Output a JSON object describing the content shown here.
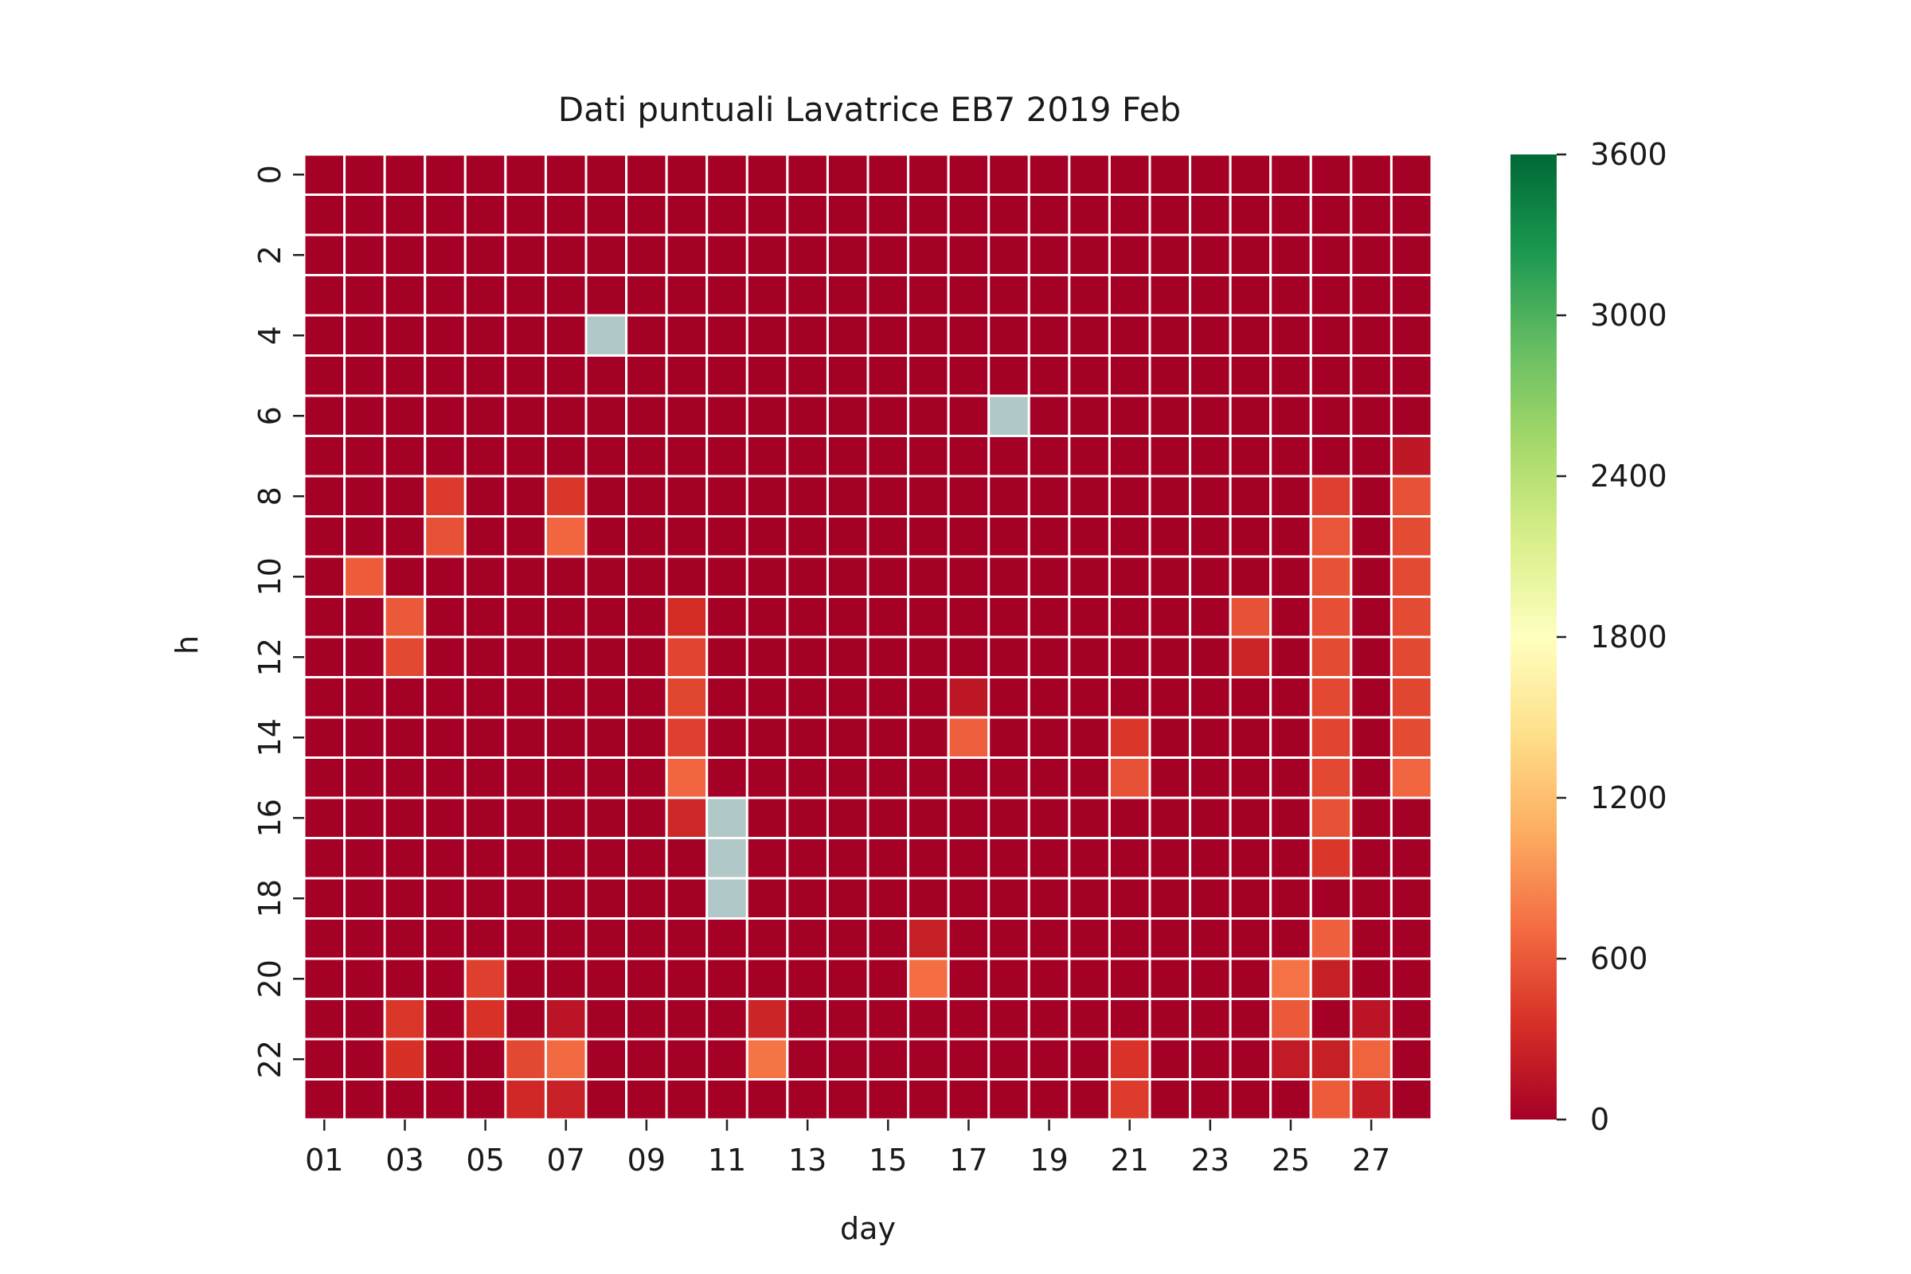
{
  "chart_data": {
    "type": "heatmap",
    "title": "Dati puntuali Lavatrice EB7 2019 Feb",
    "xlabel": "day",
    "ylabel": "h",
    "days": [
      "01",
      "02",
      "03",
      "04",
      "05",
      "06",
      "07",
      "08",
      "09",
      "10",
      "11",
      "12",
      "13",
      "14",
      "15",
      "16",
      "17",
      "18",
      "19",
      "20",
      "21",
      "22",
      "23",
      "24",
      "25",
      "26",
      "27",
      "28"
    ],
    "hours": [
      0,
      1,
      2,
      3,
      4,
      5,
      6,
      7,
      8,
      9,
      10,
      11,
      12,
      13,
      14,
      15,
      16,
      17,
      18,
      19,
      20,
      21,
      22,
      23
    ],
    "x_tick_labels": [
      "01",
      "03",
      "05",
      "07",
      "09",
      "11",
      "13",
      "15",
      "17",
      "19",
      "21",
      "23",
      "25",
      "27"
    ],
    "y_tick_labels": [
      "0",
      "2",
      "4",
      "6",
      "8",
      "10",
      "12",
      "14",
      "16",
      "18",
      "20",
      "22"
    ],
    "colorbar": {
      "min": 0,
      "max": 3600,
      "ticks": [
        0,
        600,
        1200,
        1800,
        2400,
        3000,
        3600
      ],
      "colormap": "RdYlGn",
      "stops": [
        "#a50026",
        "#d73027",
        "#f46d43",
        "#fdae61",
        "#fee08b",
        "#ffffbf",
        "#d9ef8b",
        "#a6d96a",
        "#66bd63",
        "#1a9850",
        "#006837"
      ]
    },
    "missing_color": "#b0c8c8",
    "grid_line_color": "#ffffff",
    "values": [
      [
        0,
        0,
        0,
        0,
        0,
        0,
        0,
        0,
        0,
        0,
        0,
        0,
        0,
        0,
        0,
        0,
        0,
        0,
        0,
        0,
        0,
        0,
        0,
        0,
        0,
        0,
        0,
        0
      ],
      [
        0,
        0,
        0,
        0,
        0,
        0,
        0,
        0,
        0,
        0,
        0,
        0,
        0,
        0,
        0,
        0,
        0,
        0,
        0,
        0,
        0,
        0,
        0,
        0,
        0,
        0,
        0,
        0
      ],
      [
        0,
        0,
        0,
        0,
        0,
        0,
        0,
        0,
        0,
        0,
        0,
        0,
        0,
        0,
        0,
        0,
        0,
        0,
        0,
        0,
        0,
        0,
        0,
        0,
        0,
        0,
        0,
        0
      ],
      [
        0,
        0,
        0,
        0,
        0,
        0,
        0,
        0,
        0,
        0,
        0,
        0,
        0,
        0,
        0,
        0,
        0,
        0,
        0,
        0,
        0,
        0,
        0,
        0,
        0,
        0,
        0,
        0
      ],
      [
        0,
        0,
        0,
        0,
        0,
        0,
        0,
        null,
        0,
        0,
        0,
        0,
        0,
        0,
        0,
        0,
        0,
        0,
        0,
        0,
        0,
        0,
        0,
        0,
        0,
        0,
        0,
        0
      ],
      [
        0,
        0,
        0,
        0,
        0,
        0,
        0,
        0,
        0,
        0,
        0,
        0,
        0,
        0,
        0,
        0,
        0,
        0,
        0,
        0,
        0,
        0,
        0,
        0,
        0,
        0,
        0,
        0
      ],
      [
        0,
        0,
        0,
        0,
        0,
        0,
        0,
        0,
        0,
        0,
        0,
        0,
        0,
        0,
        0,
        0,
        0,
        null,
        0,
        0,
        0,
        0,
        0,
        0,
        0,
        0,
        0,
        0
      ],
      [
        0,
        0,
        0,
        0,
        0,
        0,
        0,
        0,
        0,
        0,
        0,
        0,
        0,
        0,
        0,
        0,
        0,
        0,
        0,
        0,
        0,
        0,
        0,
        0,
        0,
        0,
        0,
        180
      ],
      [
        0,
        0,
        0,
        420,
        0,
        0,
        400,
        0,
        0,
        0,
        0,
        0,
        0,
        0,
        0,
        0,
        0,
        0,
        0,
        0,
        0,
        0,
        0,
        0,
        0,
        450,
        0,
        560
      ],
      [
        0,
        0,
        0,
        560,
        0,
        0,
        680,
        0,
        0,
        0,
        0,
        0,
        0,
        0,
        0,
        0,
        0,
        0,
        0,
        0,
        0,
        0,
        0,
        0,
        0,
        580,
        0,
        520
      ],
      [
        0,
        620,
        0,
        0,
        0,
        0,
        0,
        0,
        0,
        0,
        0,
        0,
        0,
        0,
        0,
        0,
        0,
        0,
        0,
        0,
        0,
        0,
        0,
        0,
        0,
        560,
        0,
        510
      ],
      [
        0,
        0,
        600,
        0,
        0,
        0,
        0,
        0,
        0,
        330,
        0,
        0,
        0,
        0,
        0,
        0,
        0,
        0,
        0,
        0,
        0,
        0,
        0,
        560,
        0,
        540,
        0,
        520
      ],
      [
        0,
        0,
        500,
        0,
        0,
        0,
        0,
        0,
        0,
        480,
        0,
        0,
        0,
        0,
        0,
        0,
        0,
        0,
        0,
        0,
        0,
        0,
        0,
        280,
        0,
        520,
        0,
        500
      ],
      [
        0,
        0,
        0,
        0,
        0,
        0,
        0,
        0,
        0,
        490,
        0,
        0,
        0,
        0,
        0,
        0,
        180,
        0,
        0,
        0,
        0,
        0,
        0,
        0,
        0,
        500,
        0,
        490
      ],
      [
        0,
        0,
        0,
        0,
        0,
        0,
        0,
        0,
        0,
        450,
        0,
        0,
        0,
        0,
        0,
        0,
        640,
        0,
        0,
        0,
        400,
        0,
        0,
        0,
        0,
        480,
        0,
        520
      ],
      [
        0,
        0,
        0,
        0,
        0,
        0,
        0,
        0,
        0,
        680,
        0,
        0,
        0,
        0,
        0,
        0,
        0,
        0,
        0,
        0,
        560,
        0,
        0,
        0,
        0,
        500,
        0,
        680
      ],
      [
        0,
        0,
        0,
        0,
        0,
        0,
        0,
        0,
        0,
        290,
        null,
        0,
        0,
        0,
        0,
        0,
        0,
        0,
        0,
        0,
        0,
        0,
        0,
        0,
        0,
        560,
        0,
        0
      ],
      [
        0,
        0,
        0,
        0,
        0,
        0,
        0,
        0,
        0,
        0,
        null,
        0,
        0,
        0,
        0,
        0,
        0,
        0,
        0,
        0,
        0,
        0,
        0,
        0,
        0,
        400,
        0,
        0
      ],
      [
        0,
        0,
        0,
        0,
        0,
        0,
        0,
        0,
        0,
        0,
        null,
        0,
        0,
        0,
        0,
        0,
        0,
        0,
        0,
        0,
        0,
        0,
        0,
        0,
        0,
        0,
        0,
        0
      ],
      [
        0,
        0,
        0,
        0,
        0,
        0,
        0,
        0,
        0,
        0,
        0,
        0,
        0,
        0,
        0,
        240,
        0,
        0,
        0,
        0,
        0,
        0,
        0,
        0,
        0,
        640,
        0,
        0
      ],
      [
        0,
        0,
        0,
        0,
        450,
        0,
        0,
        0,
        0,
        0,
        0,
        0,
        0,
        0,
        0,
        720,
        0,
        0,
        0,
        0,
        0,
        0,
        0,
        0,
        750,
        240,
        0,
        0
      ],
      [
        0,
        0,
        400,
        0,
        370,
        0,
        150,
        0,
        0,
        0,
        0,
        280,
        0,
        0,
        0,
        0,
        0,
        0,
        0,
        0,
        0,
        0,
        0,
        0,
        600,
        0,
        150,
        0
      ],
      [
        0,
        0,
        360,
        0,
        0,
        500,
        700,
        0,
        0,
        0,
        0,
        760,
        0,
        0,
        0,
        0,
        0,
        0,
        0,
        0,
        380,
        0,
        0,
        0,
        200,
        240,
        660,
        0
      ],
      [
        0,
        0,
        0,
        0,
        0,
        300,
        250,
        0,
        0,
        0,
        0,
        0,
        0,
        0,
        0,
        0,
        0,
        0,
        0,
        0,
        430,
        0,
        0,
        0,
        0,
        620,
        220,
        0
      ]
    ]
  }
}
